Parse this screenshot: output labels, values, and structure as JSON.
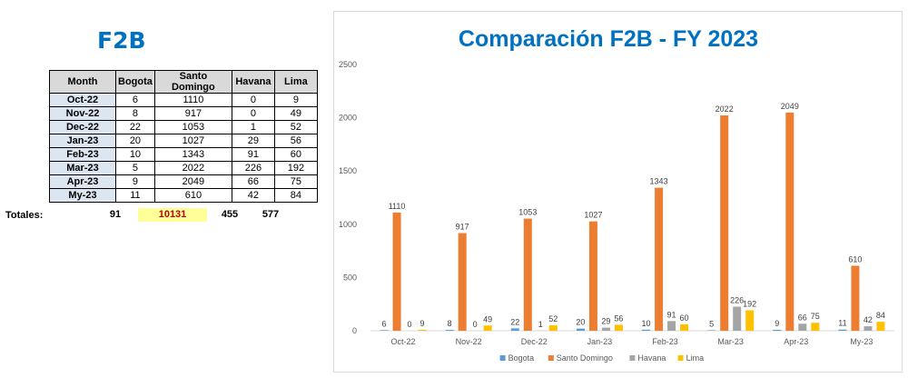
{
  "left": {
    "title": "F2B",
    "table": {
      "headers": [
        "Month",
        "Bogota",
        "Santo Domingo",
        "Havana",
        "Lima"
      ],
      "rows": [
        [
          "Oct-22",
          "6",
          "1110",
          "0",
          "9"
        ],
        [
          "Nov-22",
          "8",
          "917",
          "0",
          "49"
        ],
        [
          "Dec-22",
          "22",
          "1053",
          "1",
          "52"
        ],
        [
          "Jan-23",
          "20",
          "1027",
          "29",
          "56"
        ],
        [
          "Feb-23",
          "10",
          "1343",
          "91",
          "60"
        ],
        [
          "Mar-23",
          "5",
          "2022",
          "226",
          "192"
        ],
        [
          "Apr-23",
          "9",
          "2049",
          "66",
          "75"
        ],
        [
          "My-23",
          "11",
          "610",
          "42",
          "84"
        ]
      ]
    },
    "totals": {
      "label": "Totales:",
      "bogota": "91",
      "santo_domingo": "10131",
      "havana": "455",
      "lima": "577"
    },
    "colors": {
      "header_bg": "#d9d9d9",
      "month_bg": "#dce6f1",
      "highlight_bg": "#ffff99",
      "highlight_text": "#c00000",
      "title": "#0070c0"
    }
  },
  "chart_data": {
    "type": "bar",
    "title": "Comparación F2B - FY 2023",
    "categories": [
      "Oct-22",
      "Nov-22",
      "Dec-22",
      "Jan-23",
      "Feb-23",
      "Mar-23",
      "Apr-23",
      "My-23"
    ],
    "series": [
      {
        "name": "Bogota",
        "color": "#5b9bd5",
        "values": [
          6,
          8,
          22,
          20,
          10,
          5,
          9,
          11
        ]
      },
      {
        "name": "Santo Domingo",
        "color": "#ed7d31",
        "values": [
          1110,
          917,
          1053,
          1027,
          1343,
          2022,
          2049,
          610
        ]
      },
      {
        "name": "Havana",
        "color": "#a5a5a5",
        "values": [
          0,
          0,
          1,
          29,
          91,
          226,
          66,
          42
        ]
      },
      {
        "name": "Lima",
        "color": "#ffc000",
        "values": [
          9,
          49,
          52,
          56,
          60,
          192,
          75,
          84
        ]
      }
    ],
    "ylim": [
      0,
      2500
    ],
    "yticks": [
      0,
      500,
      1000,
      1500,
      2000,
      2500
    ],
    "grid": false,
    "legend": "bottom",
    "data_labels": true,
    "title_color": "#0070c0"
  }
}
